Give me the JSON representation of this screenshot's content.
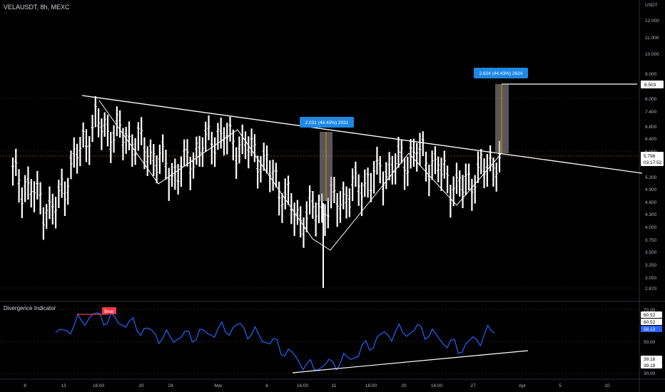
{
  "header": {
    "symbol_title": "VELAUSDT, 8h, MEXC",
    "currency": "USDT"
  },
  "price_axis": {
    "ticks": [
      "12.000",
      "11.000",
      "10.000",
      "9.000",
      "8.000",
      "7.400",
      "6.800",
      "6.400",
      "6.000",
      "5.600",
      "5.200",
      "4.900",
      "4.600",
      "4.300",
      "4.000",
      "3.750",
      "3.500",
      "3.250",
      "3.050",
      "2.870"
    ],
    "current_price": "5.798",
    "countdown": "03:17:52",
    "target_level": "8.503"
  },
  "indicator": {
    "title": "Divergence Indicator",
    "bear_label": "Bear",
    "ticks": [
      "70.00",
      "50.00",
      "30.00"
    ],
    "value_badges": [
      "60.52",
      "60.52",
      "58.13",
      "39.18",
      "39.18"
    ]
  },
  "time_axis": {
    "labels": [
      "8",
      "13",
      "16:00",
      "20",
      "24",
      "Mar",
      "6",
      "16:00",
      "11",
      "16:00",
      "20",
      "16:00",
      "27",
      "Apr",
      "5",
      "10"
    ]
  },
  "annotations": {
    "measure_1": "2.031 (44.43%) 2031",
    "measure_2": "2.624 (44.43%) 2624"
  },
  "colors": {
    "background": "#000000",
    "bars": "#ffffff",
    "rsi_line": "#2962ff",
    "measure_badge": "#1e88e5",
    "bear_badge": "#f23645"
  },
  "chart_data": {
    "type": "line",
    "title": "VELAUSDT, 8h, MEXC",
    "series": [
      {
        "name": "Price",
        "x": [
          "8",
          "13",
          "16:00",
          "20",
          "24",
          "Mar",
          "6",
          "16:00",
          "11",
          "16:00",
          "20",
          "16:00",
          "27"
        ],
        "values": [
          5.3,
          4.3,
          7.0,
          6.4,
          5.3,
          6.6,
          6.0,
          4.2,
          4.6,
          5.3,
          6.0,
          4.9,
          5.8
        ]
      },
      {
        "name": "Divergence Indicator",
        "x": [
          "8",
          "13",
          "16:00",
          "20",
          "24",
          "Mar",
          "6",
          "16:00",
          "11",
          "16:00",
          "20",
          "16:00",
          "27"
        ],
        "values": [
          54,
          68,
          62,
          52,
          55,
          60,
          48,
          31,
          38,
          55,
          58,
          45,
          58.13
        ]
      }
    ],
    "ylim_price": [
      2.87,
      12.0
    ],
    "ylim_indicator": [
      30,
      70
    ],
    "grid": true,
    "legend": "none"
  }
}
